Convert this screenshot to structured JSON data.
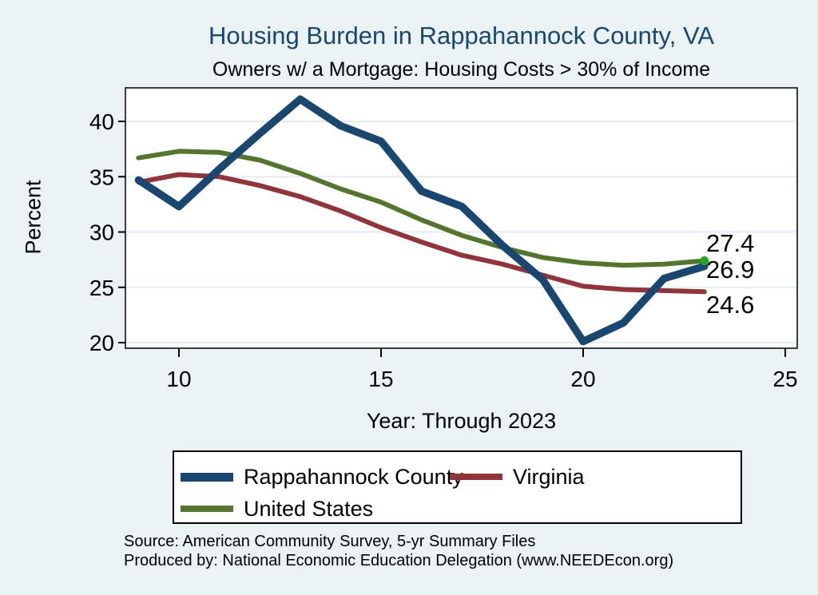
{
  "chart_data": {
    "type": "line",
    "title": "Housing Burden in Rappahannock County, VA",
    "subtitle": "Owners w/ a Mortgage: Housing Costs > 30% of Income",
    "xlabel": "Year: Through 2023",
    "ylabel": "Percent",
    "x": [
      2009,
      2010,
      2011,
      2012,
      2013,
      2014,
      2015,
      2016,
      2017,
      2018,
      2019,
      2020,
      2021,
      2022,
      2023
    ],
    "x_ticks": [
      10,
      15,
      20,
      25
    ],
    "y_ticks": [
      20,
      25,
      30,
      35,
      40
    ],
    "xlim": [
      8.7,
      25.3
    ],
    "ylim": [
      19.5,
      43.1
    ],
    "grid": true,
    "legend_position": "bottom",
    "series": [
      {
        "name": "Rappahannock County",
        "color": "#1a476f",
        "line_width": 9.5,
        "values": [
          34.7,
          32.3,
          35.7,
          38.9,
          42.0,
          39.6,
          38.2,
          33.7,
          32.3,
          28.8,
          25.7,
          20.1,
          21.8,
          25.8,
          26.9
        ]
      },
      {
        "name": "Virginia",
        "color": "#90353b",
        "line_width": 6,
        "values": [
          34.5,
          35.2,
          35.0,
          34.2,
          33.2,
          31.9,
          30.4,
          29.1,
          27.9,
          27.1,
          26.1,
          25.1,
          24.8,
          24.7,
          24.6
        ]
      },
      {
        "name": "United States",
        "color": "#55752f",
        "line_width": 6,
        "end_dot": true,
        "end_dot_color": "#25a225",
        "values": [
          36.7,
          37.3,
          37.2,
          36.5,
          35.3,
          33.9,
          32.7,
          31.1,
          29.7,
          28.6,
          27.7,
          27.2,
          27.0,
          27.1,
          27.4
        ]
      }
    ],
    "end_labels": [
      {
        "series": "United States",
        "text": "27.4"
      },
      {
        "series": "Rappahannock County",
        "text": "26.9"
      },
      {
        "series": "Virginia",
        "text": "24.6"
      }
    ]
  },
  "colors": {
    "background": "#eaf2f3",
    "plot_background": "#ffffff",
    "grid": "#e4eef1",
    "axis": "#000000",
    "title": "#1a476f",
    "text": "#000000"
  },
  "notes": {
    "source": "Source: American Community Survey, 5-yr Summary Files",
    "produced_by": "Produced by: National Economic Education Delegation (www.NEEDEcon.org)"
  }
}
